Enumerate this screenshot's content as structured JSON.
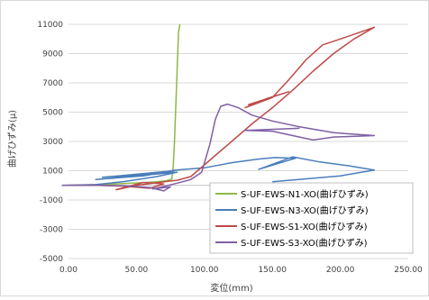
{
  "chart_data": {
    "type": "line",
    "title": "",
    "xlabel": "変位(mm)",
    "ylabel": "曲げひずみ(μ)",
    "xlim": [
      0,
      250
    ],
    "ylim": [
      -5000,
      11000
    ],
    "x_ticks": [
      "0.00",
      "50.00",
      "100.00",
      "150.00",
      "200.00",
      "250.00"
    ],
    "y_ticks": [
      "11000",
      "9000",
      "7000",
      "5000",
      "3000",
      "1000",
      "-1000",
      "-3000",
      "-5000"
    ],
    "grid": "horizontal",
    "legend_position": "bottom-right",
    "series": [
      {
        "name": "S-UF-EWS-N1-XO(曲げひずみ)",
        "color": "#8db848",
        "points": [
          [
            -5,
            0
          ],
          [
            10,
            20
          ],
          [
            25,
            60
          ],
          [
            40,
            120
          ],
          [
            55,
            180
          ],
          [
            65,
            250
          ],
          [
            72,
            320
          ],
          [
            76,
            420
          ],
          [
            77,
            1200
          ],
          [
            78,
            3000
          ],
          [
            79,
            5500
          ],
          [
            80,
            8000
          ],
          [
            81,
            10500
          ],
          [
            82,
            11000
          ]
        ]
      },
      {
        "name": "S-UF-EWS-N3-XO(曲げひずみ)",
        "color": "#4a7ebb",
        "points": [
          [
            -5,
            0
          ],
          [
            20,
            50
          ],
          [
            40,
            250
          ],
          [
            65,
            600
          ],
          [
            80,
            900
          ],
          [
            20,
            400
          ],
          [
            55,
            650
          ],
          [
            78,
            1000
          ],
          [
            25,
            550
          ],
          [
            62,
            800
          ],
          [
            79,
            1050
          ],
          [
            100,
            1200
          ],
          [
            120,
            1550
          ],
          [
            140,
            1800
          ],
          [
            152,
            1900
          ],
          [
            167,
            1850
          ],
          [
            140,
            1100
          ],
          [
            165,
            1950
          ],
          [
            185,
            1600
          ],
          [
            205,
            1350
          ],
          [
            225,
            1050
          ],
          [
            200,
            650
          ],
          [
            150,
            250
          ]
        ]
      },
      {
        "name": "S-UF-EWS-S1-XO(曲げひずみ)",
        "color": "#be4b48",
        "points": [
          [
            -5,
            0
          ],
          [
            20,
            10
          ],
          [
            40,
            -50
          ],
          [
            60,
            -200
          ],
          [
            70,
            100
          ],
          [
            55,
            200
          ],
          [
            35,
            -300
          ],
          [
            50,
            0
          ],
          [
            75,
            300
          ],
          [
            80,
            350
          ],
          [
            90,
            600
          ],
          [
            105,
            1800
          ],
          [
            120,
            3000
          ],
          [
            135,
            4200
          ],
          [
            150,
            5300
          ],
          [
            165,
            6500
          ],
          [
            180,
            7800
          ],
          [
            195,
            9000
          ],
          [
            210,
            10000
          ],
          [
            225,
            10800
          ],
          [
            200,
            10000
          ],
          [
            187,
            9600
          ],
          [
            175,
            8600
          ],
          [
            162,
            7200
          ],
          [
            150,
            6000
          ],
          [
            130,
            5300
          ],
          [
            145,
            5900
          ],
          [
            162,
            6400
          ],
          [
            132,
            5500
          ]
        ]
      },
      {
        "name": "S-UF-EWS-S3-XO(曲げひずみ)",
        "color": "#7e5fa4",
        "points": [
          [
            -5,
            0
          ],
          [
            15,
            10
          ],
          [
            40,
            -20
          ],
          [
            60,
            -150
          ],
          [
            70,
            -380
          ],
          [
            75,
            -100
          ],
          [
            62,
            -250
          ],
          [
            80,
            150
          ],
          [
            90,
            400
          ],
          [
            98,
            900
          ],
          [
            104,
            2800
          ],
          [
            108,
            4500
          ],
          [
            112,
            5400
          ],
          [
            117,
            5550
          ],
          [
            125,
            5300
          ],
          [
            135,
            4800
          ],
          [
            150,
            4400
          ],
          [
            170,
            4000
          ],
          [
            195,
            3600
          ],
          [
            225,
            3400
          ],
          [
            195,
            3300
          ],
          [
            180,
            3100
          ],
          [
            150,
            3700
          ],
          [
            130,
            3750
          ],
          [
            170,
            3900
          ]
        ]
      }
    ]
  }
}
